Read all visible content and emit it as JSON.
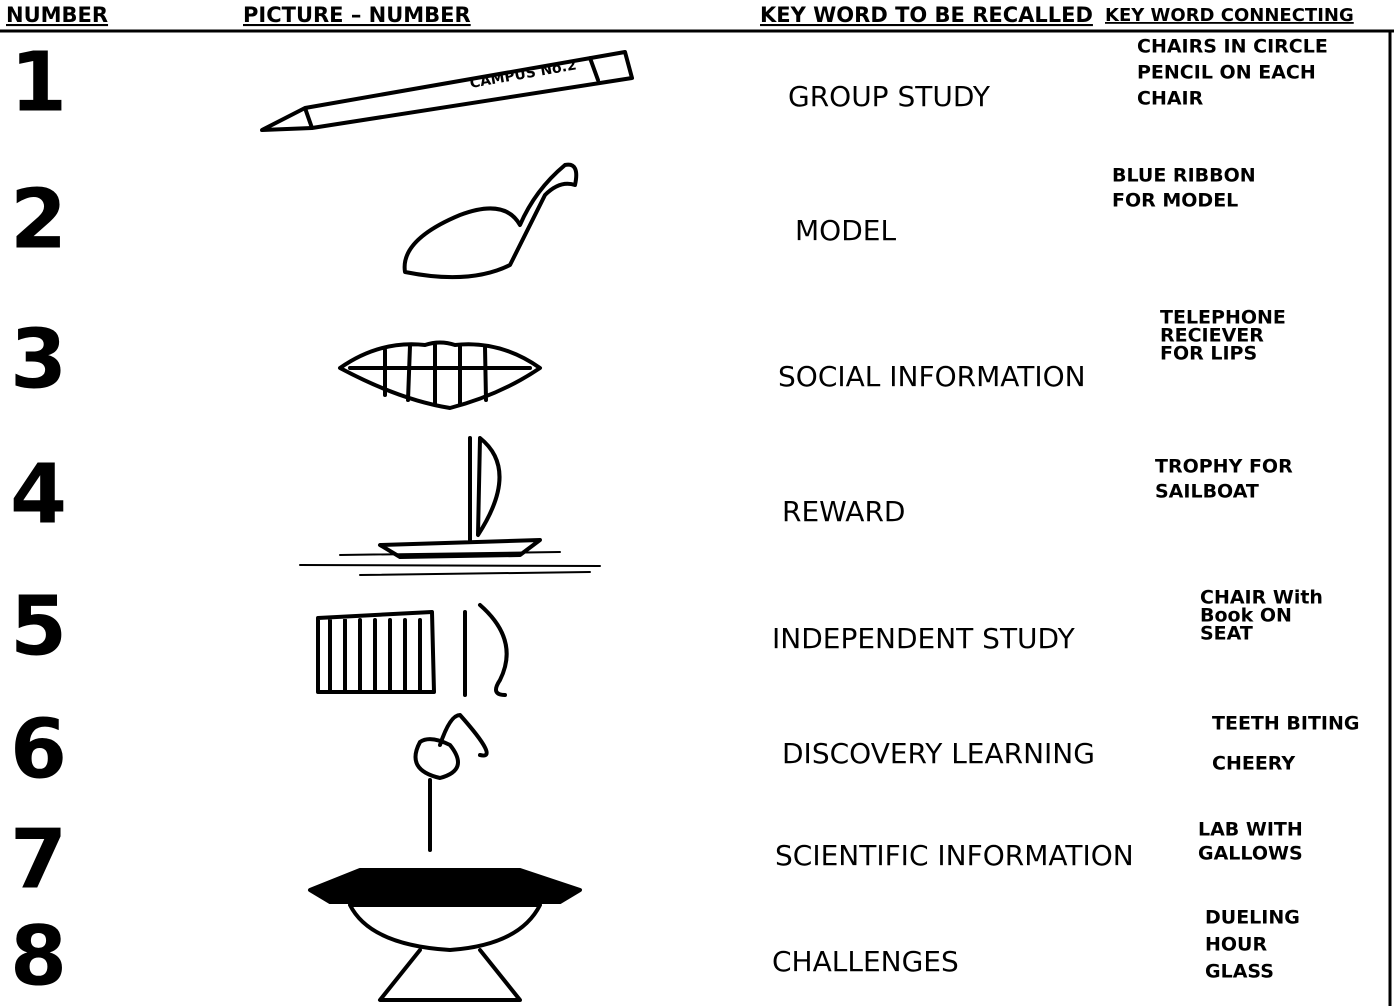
{
  "header": {
    "number": "NUMBER",
    "picture": "PICTURE  –  NUMBER",
    "keyword": "KEY WORD TO BE RECALLED",
    "connecting": "KEY WORD CONNECTING"
  },
  "pencil_label": "CAMPUS No.2",
  "rows": [
    {
      "number": "1",
      "keyword": "GROUP STUDY",
      "connecting": [
        "CHAIRS IN CIRCLE",
        "PENCIL ON EACH",
        "CHAIR"
      ]
    },
    {
      "number": "2",
      "keyword": "MODEL",
      "connecting": [
        "BLUE RIBBON",
        "FOR MODEL"
      ]
    },
    {
      "number": "3",
      "keyword": "SOCIAL INFORMATION",
      "connecting": [
        "TELEPHONE",
        "RECIEVER",
        "FOR LIPS"
      ]
    },
    {
      "number": "4",
      "keyword": "REWARD",
      "connecting": [
        "TROPHY FOR",
        "SAILBOAT"
      ]
    },
    {
      "number": "5",
      "keyword": "INDEPENDENT STUDY",
      "connecting": [
        "CHAIR With",
        "Book ON",
        "SEAT"
      ]
    },
    {
      "number": "6",
      "keyword": "DISCOVERY LEARNING",
      "connecting": [
        "TEETH BITING",
        "CHEERY"
      ]
    },
    {
      "number": "7",
      "keyword": "SCIENTIFIC INFORMATION",
      "connecting": [
        "LAB WITH",
        "GALLOWS"
      ]
    },
    {
      "number": "8",
      "keyword": "CHALLENGES",
      "connecting": [
        "DUELING",
        "HOUR",
        "GLASS"
      ]
    }
  ]
}
